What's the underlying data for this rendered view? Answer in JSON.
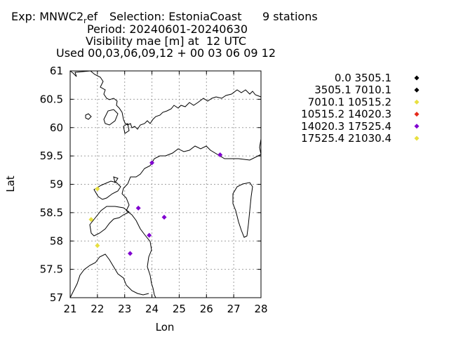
{
  "header": {
    "exp_prefix": "Exp: MNWC2",
    "exp_sub": "r",
    "exp_suffix": "ef",
    "selection": "Selection: EstoniaCoast",
    "stations": "9 stations",
    "period": "Period: 20240601-20240630",
    "parameter": "Visibility mae [m] at  12 UTC",
    "used": "Used 00,03,06,09,12 + 00 03 06 09 12"
  },
  "chart_data": {
    "type": "scatter",
    "xlabel": "Lon",
    "ylabel": "Lat",
    "xlim": [
      21,
      28
    ],
    "ylim": [
      57,
      61
    ],
    "xticks": [
      "21",
      "22",
      "23",
      "24",
      "25",
      "26",
      "27",
      "28"
    ],
    "yticks": [
      "57",
      "57.5",
      "58",
      "58.5",
      "59",
      "59.5",
      "60",
      "60.5",
      "61"
    ],
    "grid": true,
    "legend_position": "right",
    "classes": [
      {
        "label": "0.0 3505.1",
        "color": "#000000"
      },
      {
        "label": "3505.1 7010.1",
        "color": "#000000"
      },
      {
        "label": "7010.1 10515.2",
        "color": "#e8e040"
      },
      {
        "label": "10515.2 14020.3",
        "color": "#e52a1a"
      },
      {
        "label": "14020.3 17525.4",
        "color": "#8000d0"
      },
      {
        "label": "17525.4 21030.4",
        "color": "#e8e040"
      }
    ],
    "stations": [
      {
        "lon": 24.0,
        "lat": 59.38,
        "class": 4
      },
      {
        "lon": 26.5,
        "lat": 59.52,
        "class": 4
      },
      {
        "lon": 22.0,
        "lat": 58.92,
        "class": 5
      },
      {
        "lon": 23.5,
        "lat": 58.58,
        "class": 4
      },
      {
        "lon": 24.45,
        "lat": 58.42,
        "class": 4
      },
      {
        "lon": 21.77,
        "lat": 58.38,
        "class": 5
      },
      {
        "lon": 23.9,
        "lat": 58.1,
        "class": 4
      },
      {
        "lon": 22.0,
        "lat": 57.92,
        "class": 5
      },
      {
        "lon": 23.2,
        "lat": 57.78,
        "class": 4
      }
    ]
  }
}
